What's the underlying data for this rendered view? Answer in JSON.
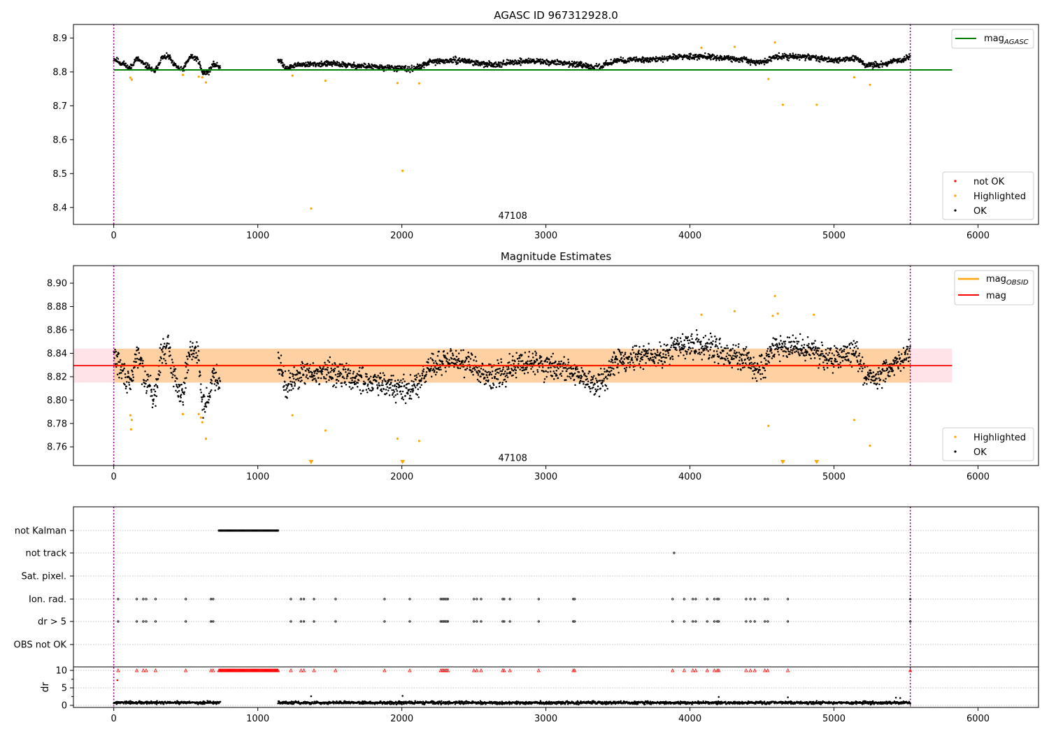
{
  "chart_data": [
    {
      "type": "scatter",
      "title": "AGASC ID 967312928.0",
      "xlim": [
        -280,
        6420
      ],
      "ylim": [
        8.35,
        8.94
      ],
      "xticks": [
        0,
        1000,
        2000,
        3000,
        4000,
        5000,
        6000
      ],
      "yticks": [
        8.4,
        8.5,
        8.6,
        8.7,
        8.8,
        8.9
      ],
      "ytick_labels": [
        "8.4",
        "8.5",
        "8.6",
        "8.7",
        "8.8",
        "8.9"
      ],
      "vlines": [
        0,
        5530
      ],
      "obsid_label": {
        "text": "47108",
        "x": 2770,
        "y": 8.367
      },
      "hline": {
        "name": "mag",
        "subscript": "AGASC",
        "y": 8.806,
        "x_range": [
          0,
          5820
        ],
        "color": "#008000"
      },
      "segments": [
        [
          0,
          740
        ],
        [
          1140,
          5530
        ]
      ],
      "series": [
        {
          "name": "not OK",
          "color": "#ff0000",
          "points": []
        },
        {
          "name": "Highlighted",
          "color": "#ffa500",
          "points": [
            [
              115,
              8.783
            ],
            [
              125,
              8.777
            ],
            [
              480,
              8.791
            ],
            [
              590,
              8.786
            ],
            [
              615,
              8.784
            ],
            [
              640,
              8.769
            ],
            [
              1240,
              8.789
            ],
            [
              1370,
              8.397
            ],
            [
              1470,
              8.774
            ],
            [
              1970,
              8.767
            ],
            [
              2005,
              8.508
            ],
            [
              2120,
              8.766
            ],
            [
              4080,
              8.871
            ],
            [
              4310,
              8.874
            ],
            [
              4545,
              8.779
            ],
            [
              4590,
              8.887
            ],
            [
              4645,
              8.703
            ],
            [
              4880,
              8.703
            ],
            [
              5140,
              8.784
            ],
            [
              5250,
              8.762
            ]
          ]
        },
        {
          "name": "OK",
          "color": "#000000",
          "points": []
        }
      ],
      "legend_lines": [
        {
          "name": "mag",
          "subscript": "AGASC",
          "color": "#008000"
        }
      ],
      "legend_points": [
        {
          "name": "not OK",
          "color": "#ff0000"
        },
        {
          "name": "Highlighted",
          "color": "#ffa500"
        },
        {
          "name": "OK",
          "color": "#000000"
        }
      ]
    },
    {
      "type": "scatter",
      "title": "Magnitude Estimates",
      "xlim": [
        -280,
        6420
      ],
      "ylim": [
        8.744,
        8.915
      ],
      "xticks": [
        0,
        1000,
        2000,
        3000,
        4000,
        5000,
        6000
      ],
      "yticks": [
        8.76,
        8.78,
        8.8,
        8.82,
        8.84,
        8.86,
        8.88,
        8.9
      ],
      "ytick_labels": [
        "8.76",
        "8.78",
        "8.80",
        "8.82",
        "8.84",
        "8.86",
        "8.88",
        "8.90"
      ],
      "vlines": [
        0,
        5530
      ],
      "obsid_label": {
        "text": "47108",
        "x": 2770,
        "y": 8.748
      },
      "bands": [
        {
          "color": "#ffc0cb",
          "opacity": 0.45,
          "y_range": [
            8.815,
            8.844
          ],
          "x_range": [
            -280,
            5820
          ]
        },
        {
          "color": "#ffa500",
          "opacity": 0.3,
          "y_range": [
            8.815,
            8.844
          ],
          "x_range": [
            0,
            5530
          ]
        }
      ],
      "lines": [
        {
          "name": "mag",
          "subscript": "OBSID",
          "color": "#ffa500",
          "y": 8.8295,
          "x_range": [
            0,
            5530
          ],
          "width": 2.5
        },
        {
          "name": "mag",
          "color": "#ff0000",
          "y": 8.8295,
          "x_range": [
            -280,
            5820
          ],
          "width": 1.8
        }
      ],
      "segments": [
        [
          0,
          740
        ],
        [
          1140,
          5530
        ]
      ],
      "series": [
        {
          "name": "Highlighted",
          "color": "#ffa500",
          "points": [
            [
              115,
              8.787
            ],
            [
              125,
              8.783
            ],
            [
              120,
              8.775
            ],
            [
              480,
              8.788
            ],
            [
              590,
              8.788
            ],
            [
              605,
              8.785
            ],
            [
              615,
              8.781
            ],
            [
              640,
              8.767
            ],
            [
              1240,
              8.787
            ],
            [
              1470,
              8.774
            ],
            [
              1970,
              8.767
            ],
            [
              2120,
              8.765
            ],
            [
              4080,
              8.873
            ],
            [
              4310,
              8.876
            ],
            [
              4545,
              8.778
            ],
            [
              4575,
              8.872
            ],
            [
              4590,
              8.889
            ],
            [
              4610,
              8.874
            ],
            [
              4860,
              8.873
            ],
            [
              5140,
              8.783
            ],
            [
              5250,
              8.761
            ]
          ]
        },
        {
          "name": "OK",
          "color": "#000000",
          "points": []
        }
      ],
      "clipped_markers": [
        1370,
        2005,
        4645,
        4880
      ],
      "legend_lines": [
        {
          "name": "mag",
          "subscript": "OBSID",
          "color": "#ffa500"
        },
        {
          "name": "mag",
          "color": "#ff0000"
        }
      ],
      "legend_points": [
        {
          "name": "Highlighted",
          "color": "#ffa500"
        },
        {
          "name": "OK",
          "color": "#000000"
        }
      ]
    },
    {
      "type": "scatter",
      "xlim": [
        -280,
        6420
      ],
      "vlines": [
        0,
        5530
      ],
      "flag_rows": [
        "not Kalman",
        "not track",
        "Sat. pixel.",
        "Ion. rad.",
        "dr > 5",
        "OBS not OK"
      ],
      "flags": {
        "not Kalman": {
          "range": [
            730,
            1140
          ]
        },
        "not track": {
          "points": [
            3890
          ]
        },
        "Sat. pixel.": {
          "points": []
        },
        "Ion. rad.": {
          "points": [
            30,
            160,
            205,
            225,
            290,
            500,
            675,
            690,
            1230,
            1300,
            1320,
            1390,
            1540,
            1880,
            2055,
            2270,
            2280,
            2290,
            2300,
            2310,
            2320,
            2500,
            2520,
            2550,
            2700,
            2710,
            2750,
            2950,
            3190,
            3200,
            3880,
            3960,
            4020,
            4040,
            4120,
            4170,
            4190,
            4200,
            4390,
            4420,
            4450,
            4520,
            4540,
            4680,
            5530
          ]
        },
        "dr > 5": {
          "points": [
            30,
            160,
            205,
            225,
            290,
            500,
            675,
            690,
            1230,
            1300,
            1320,
            1390,
            1540,
            1880,
            2055,
            2270,
            2280,
            2290,
            2300,
            2310,
            2320,
            2500,
            2520,
            2550,
            2700,
            2710,
            2750,
            2950,
            3190,
            3200,
            3880,
            3960,
            4020,
            4040,
            4120,
            4170,
            4190,
            4200,
            4390,
            4420,
            4450,
            4520,
            4540,
            4680,
            5530
          ]
        },
        "OBS not OK": {
          "points": []
        }
      },
      "dr": {
        "ylabel": "dr",
        "yticks": [
          0,
          5,
          10
        ],
        "ylim": [
          -0.6,
          11
        ],
        "capped": [
          30,
          160,
          205,
          225,
          290,
          500,
          675,
          690,
          1230,
          1300,
          1320,
          1390,
          1540,
          1880,
          2055,
          2270,
          2280,
          2290,
          2300,
          2310,
          2320,
          2500,
          2520,
          2550,
          2700,
          2710,
          2750,
          2950,
          3190,
          3200,
          3880,
          3960,
          4020,
          4040,
          4120,
          4170,
          4190,
          4200,
          4390,
          4420,
          4450,
          4520,
          4540,
          4680,
          5530
        ],
        "capped_range": [
          730,
          1140
        ],
        "outliers": [
          [
            25,
            7.2
          ],
          [
            1370,
            2.6
          ],
          [
            2005,
            2.7
          ],
          [
            4200,
            2.4
          ],
          [
            4680,
            2.3
          ],
          [
            5430,
            2.2
          ],
          [
            5460,
            2.1
          ]
        ],
        "segments": [
          [
            0,
            740
          ],
          [
            1140,
            5530
          ]
        ]
      }
    }
  ]
}
